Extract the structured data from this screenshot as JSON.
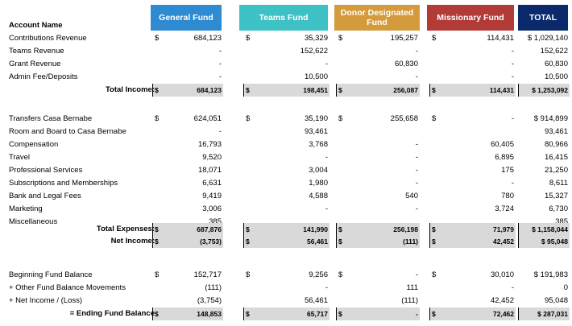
{
  "headers": {
    "account": "Account Name",
    "funds": [
      {
        "label": "General Fund",
        "color": "#2e8ad1"
      },
      {
        "label": "Teams Fund",
        "color": "#3ec1c4"
      },
      {
        "label": "Donor Designated Fund",
        "color": "#d39b3c"
      },
      {
        "label": "Missionary Fund",
        "color": "#b23a37"
      },
      {
        "label": "TOTAL",
        "color": "#0a2a6b"
      }
    ]
  },
  "rows": [
    {
      "label": "Contributions Revenue",
      "cur": [
        "$",
        "$",
        "$",
        "$",
        ""
      ],
      "vals": [
        "684,123",
        "35,329",
        "195,257",
        "114,431",
        "$ 1,029,140"
      ]
    },
    {
      "label": "Teams Revenue",
      "cur": [
        "",
        "",
        "",
        "",
        ""
      ],
      "vals": [
        "-",
        "152,622",
        "-",
        "-",
        "152,622"
      ]
    },
    {
      "label": "Grant Revenue",
      "cur": [
        "",
        "",
        "",
        "",
        ""
      ],
      "vals": [
        "-",
        "-",
        "60,830",
        "-",
        "60,830"
      ]
    },
    {
      "label": "Admin Fee/Deposits",
      "cur": [
        "",
        "",
        "",
        "",
        ""
      ],
      "vals": [
        "-",
        "10,500",
        "-",
        "-",
        "10,500"
      ]
    },
    {
      "label": "Total Income:",
      "total": true,
      "cur": [
        "$",
        "$",
        "$",
        "$",
        ""
      ],
      "vals": [
        "684,123",
        "198,451",
        "256,087",
        "114,431",
        "$ 1,253,092"
      ]
    },
    {
      "label": "Transfers Casa Bernabe",
      "cur": [
        "$",
        "$",
        "$",
        "$",
        ""
      ],
      "vals": [
        "624,051",
        "35,190",
        "255,658",
        "-",
        "$ 914,899"
      ]
    },
    {
      "label": "Room and Board to Casa Bernabe",
      "cur": [
        "",
        "",
        "",
        "",
        ""
      ],
      "vals": [
        "-",
        "93,461",
        "",
        "",
        "93,461"
      ]
    },
    {
      "label": "Compensation",
      "cur": [
        "",
        "",
        "",
        "",
        ""
      ],
      "vals": [
        "16,793",
        "3,768",
        "-",
        "60,405",
        "80,966"
      ]
    },
    {
      "label": "Travel",
      "cur": [
        "",
        "",
        "",
        "",
        ""
      ],
      "vals": [
        "9,520",
        "-",
        "-",
        "6,895",
        "16,415"
      ]
    },
    {
      "label": "Professional Services",
      "cur": [
        "",
        "",
        "",
        "",
        ""
      ],
      "vals": [
        "18,071",
        "3,004",
        "-",
        "175",
        "21,250"
      ]
    },
    {
      "label": "Subscriptions and Memberships",
      "cur": [
        "",
        "",
        "",
        "",
        ""
      ],
      "vals": [
        "6,631",
        "1,980",
        "-",
        "-",
        "8,611"
      ]
    },
    {
      "label": "Bank and Legal Fees",
      "cur": [
        "",
        "",
        "",
        "",
        ""
      ],
      "vals": [
        "9,419",
        "4,588",
        "540",
        "780",
        "15,327"
      ]
    },
    {
      "label": "Marketing",
      "cur": [
        "",
        "",
        "",
        "",
        ""
      ],
      "vals": [
        "3,006",
        "-",
        "-",
        "3,724",
        "6,730"
      ]
    },
    {
      "label": "Miscellaneous",
      "cur": [
        "",
        "",
        "",
        "",
        ""
      ],
      "vals": [
        "385",
        "",
        "",
        "",
        "385"
      ]
    },
    {
      "label": "Total Expenses:",
      "total": true,
      "cur": [
        "$",
        "$",
        "$",
        "$",
        ""
      ],
      "vals": [
        "687,876",
        "141,990",
        "256,198",
        "71,979",
        "$ 1,158,044"
      ]
    },
    {
      "label": "Net Income:",
      "total": true,
      "cur": [
        "$",
        "$",
        "$",
        "$",
        ""
      ],
      "vals": [
        "(3,753)",
        "56,461",
        "(111)",
        "42,452",
        "$ 95,048"
      ]
    },
    {
      "label": "Beginning Fund Balance",
      "cur": [
        "$",
        "$",
        "$",
        "$",
        ""
      ],
      "vals": [
        "152,717",
        "9,256",
        "-",
        "30,010",
        "$ 191,983"
      ]
    },
    {
      "label": "+ Other Fund Balance Movements",
      "cur": [
        "",
        "",
        "",
        "",
        ""
      ],
      "vals": [
        "(111)",
        "-",
        "111",
        "-",
        "0"
      ]
    },
    {
      "label": "+ Net Income / (Loss)",
      "cur": [
        "",
        "",
        "",
        "",
        ""
      ],
      "vals": [
        "(3,754)",
        "56,461",
        "(111)",
        "42,452",
        "95,048"
      ]
    },
    {
      "label": "= Ending Fund Balance",
      "total": true,
      "cur": [
        "$",
        "$",
        "$",
        "$",
        ""
      ],
      "vals": [
        "148,853",
        "65,717",
        "-",
        "72,462",
        "$ 287,031"
      ]
    }
  ]
}
